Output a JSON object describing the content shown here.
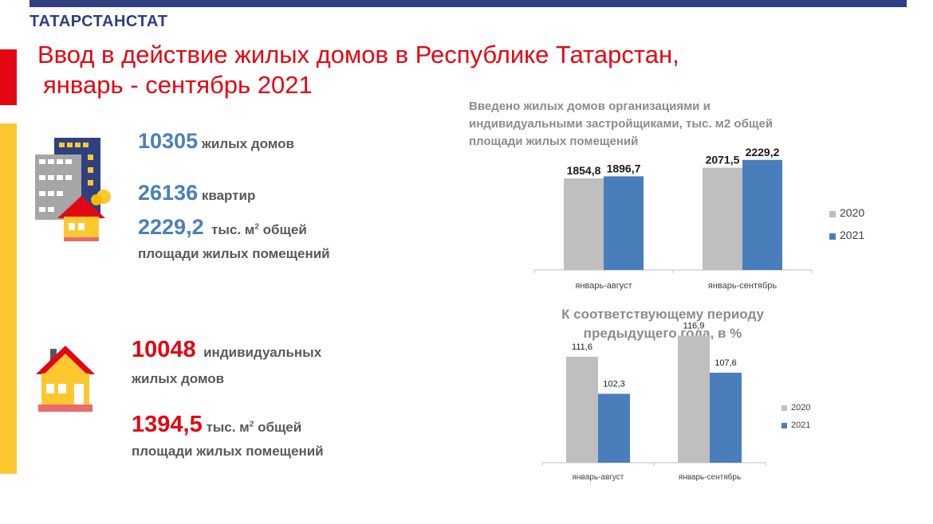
{
  "brand": "ТАТАРСТАНСТАТ",
  "title_line1": "Ввод в действие жилых домов в Республике Татарстан,",
  "title_line2": "январь - сентябрь 2021",
  "stats": {
    "houses_value": "10305",
    "houses_label": "жилых домов",
    "apartments_value": "26136",
    "apartments_label": "квартир",
    "area_value": "2229,2",
    "area_unit": "тыс. м",
    "area_sup": "2",
    "area_label1": "общей",
    "area_label2": "площади жилых  помещений",
    "ind_value": "10048",
    "ind_label1": "индивидуальных",
    "ind_label2": "жилых домов",
    "ind_area_value": "1394,5",
    "ind_area_unit": "тыс. м",
    "ind_area_sup": "2",
    "ind_area_label1": "общей",
    "ind_area_label2": "площади жилых  помещений"
  },
  "chart1_title": "Введено жилых домов организациями и индивидуальными застройщиками, тыс. м2 общей площади жилых помещений",
  "chart2_title": "К соответствующему периоду предыдущего года, в %",
  "colors": {
    "series_2020": "#bfbfbf",
    "series_2021": "#4a7ebb",
    "accent_red": "#e30613",
    "accent_blue": "#2f3f7f"
  },
  "icons": [
    "apartment-building-icon",
    "house-icon",
    "coin-icon"
  ],
  "chart_data": [
    {
      "type": "bar",
      "title": "Введено жилых домов организациями и индивидуальными застройщиками, тыс. м2 общей площади жилых помещений",
      "categories": [
        "январь-август",
        "январь-сентябрь"
      ],
      "series": [
        {
          "name": "2020",
          "values": [
            1854.8,
            2071.5
          ],
          "labels": [
            "1854,8",
            "2071,5"
          ]
        },
        {
          "name": "2021",
          "values": [
            1896.7,
            2229.2
          ],
          "labels": [
            "1896,7",
            "2229,2"
          ]
        }
      ],
      "ylim": [
        0,
        2500
      ],
      "grid": false,
      "legend": "right"
    },
    {
      "type": "bar",
      "title": "К соответствующему периоду предыдущего года, в %",
      "categories": [
        "январь-август",
        "январь-сентябрь"
      ],
      "series": [
        {
          "name": "2020",
          "values": [
            111.6,
            116.9
          ],
          "labels": [
            "111,6",
            "116,9"
          ]
        },
        {
          "name": "2021",
          "values": [
            102.3,
            107.6
          ],
          "labels": [
            "102,3",
            "107,6"
          ]
        }
      ],
      "ylim": [
        85,
        120
      ],
      "grid": false,
      "legend": "right"
    }
  ]
}
